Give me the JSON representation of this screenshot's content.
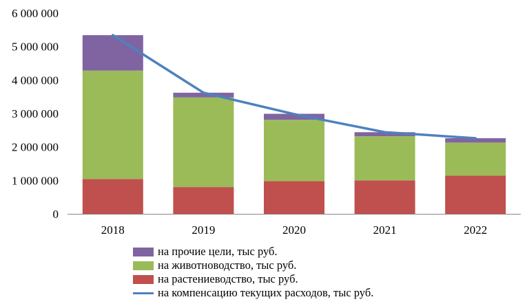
{
  "chart_data": {
    "type": "bar",
    "stacked": true,
    "title": "",
    "xlabel": "",
    "ylabel": "",
    "categories": [
      "2018",
      "2019",
      "2020",
      "2021",
      "2022"
    ],
    "ylim": [
      0,
      6000000
    ],
    "yticks": [
      0,
      1000000,
      2000000,
      3000000,
      4000000,
      5000000,
      6000000
    ],
    "ytick_labels": [
      "0",
      "1 000 000",
      "2 000 000",
      "3 000 000",
      "4 000 000",
      "5 000 000",
      "6 000 000"
    ],
    "grid": false,
    "legend_position": "bottom",
    "series": [
      {
        "name": "на растениеводство, тыс руб.",
        "kind": "bar",
        "color": "#C0504D",
        "values": [
          1040000,
          800000,
          980000,
          1000000,
          1140000
        ]
      },
      {
        "name": "на животноводство, тыс руб.",
        "kind": "bar",
        "color": "#9BBB59",
        "values": [
          3240000,
          2680000,
          1830000,
          1320000,
          990000
        ]
      },
      {
        "name": "на прочие цели, тыс руб.",
        "kind": "bar",
        "color": "#8064A2",
        "values": [
          1060000,
          140000,
          180000,
          120000,
          130000
        ]
      },
      {
        "name": "на компенсацию текущих расходов, тыс руб.",
        "kind": "line",
        "color": "#4F81BD",
        "values": [
          5340000,
          3620000,
          2980000,
          2440000,
          2260000
        ]
      }
    ]
  }
}
